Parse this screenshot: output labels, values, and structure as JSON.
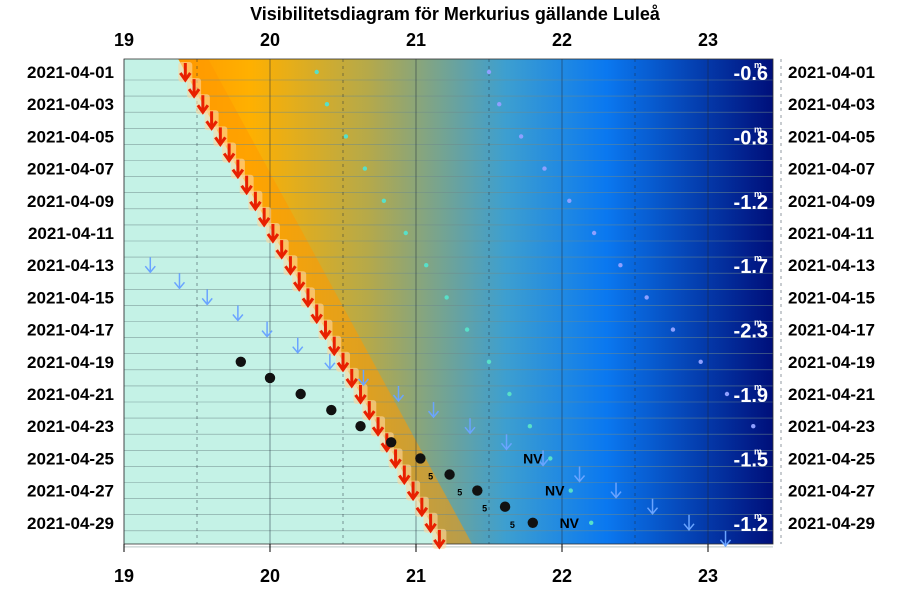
{
  "title": "Visibilitetsdiagram för Merkurius gällande Luleå",
  "chart_data": {
    "type": "scatter",
    "title": "Visibilitetsdiagram för Merkurius gällande Luleå",
    "x_axis": {
      "min": 19.0,
      "max": 23.5,
      "ticks": [
        19,
        20,
        21,
        22,
        23
      ],
      "tick_labels": [
        "19",
        "20",
        "21",
        "22",
        "23"
      ]
    },
    "y_axis": {
      "start_day": 1,
      "end_day": 30,
      "tick_labels": [
        "2021-04-01",
        "2021-04-03",
        "2021-04-05",
        "2021-04-07",
        "2021-04-09",
        "2021-04-11",
        "2021-04-13",
        "2021-04-15",
        "2021-04-17",
        "2021-04-19",
        "2021-04-21",
        "2021-04-23",
        "2021-04-25",
        "2021-04-27",
        "2021-04-29"
      ]
    },
    "colors": {
      "daylight": "#c4f2e6",
      "sunset_glow": "#ff9900",
      "twilight_mid": "#b5a94a",
      "dusk_blue": "#0a78f0",
      "night": "#000f7a",
      "sunset_marker": "#e82000",
      "moon_arrow": "#6aa4ff",
      "planet": "#111111"
    },
    "series": [
      {
        "name": "",
        "marker": "red-down-arrow",
        "points": [
          {
            "day": 1,
            "time": 19.42
          },
          {
            "day": 2,
            "time": 19.48
          },
          {
            "day": 3,
            "time": 19.54
          },
          {
            "day": 4,
            "time": 19.6
          },
          {
            "day": 5,
            "time": 19.66
          },
          {
            "day": 6,
            "time": 19.72
          },
          {
            "day": 7,
            "time": 19.78
          },
          {
            "day": 8,
            "time": 19.84
          },
          {
            "day": 9,
            "time": 19.9
          },
          {
            "day": 10,
            "time": 19.96
          },
          {
            "day": 11,
            "time": 20.02
          },
          {
            "day": 12,
            "time": 20.08
          },
          {
            "day": 13,
            "time": 20.14
          },
          {
            "day": 14,
            "time": 20.2
          },
          {
            "day": 15,
            "time": 20.26
          },
          {
            "day": 16,
            "time": 20.32
          },
          {
            "day": 17,
            "time": 20.38
          },
          {
            "day": 18,
            "time": 20.44
          },
          {
            "day": 19,
            "time": 20.5
          },
          {
            "day": 20,
            "time": 20.56
          },
          {
            "day": 21,
            "time": 20.62
          },
          {
            "day": 22,
            "time": 20.68
          },
          {
            "day": 23,
            "time": 20.74
          },
          {
            "day": 24,
            "time": 20.8
          },
          {
            "day": 25,
            "time": 20.86
          },
          {
            "day": 26,
            "time": 20.92
          },
          {
            "day": 27,
            "time": 20.98
          },
          {
            "day": 28,
            "time": 21.04
          },
          {
            "day": 29,
            "time": 21.1
          },
          {
            "day": 30,
            "time": 21.16
          }
        ]
      },
      {
        "name": "",
        "marker": "teal-dot",
        "points": [
          {
            "day": 1,
            "time": 20.32
          },
          {
            "day": 3,
            "time": 20.39
          },
          {
            "day": 5,
            "time": 20.52
          },
          {
            "day": 7,
            "time": 20.65
          },
          {
            "day": 9,
            "time": 20.78
          },
          {
            "day": 11,
            "time": 20.93
          },
          {
            "day": 13,
            "time": 21.07
          },
          {
            "day": 15,
            "time": 21.21
          },
          {
            "day": 17,
            "time": 21.35
          },
          {
            "day": 19,
            "time": 21.5
          },
          {
            "day": 21,
            "time": 21.64
          },
          {
            "day": 23,
            "time": 21.78
          },
          {
            "day": 25,
            "time": 21.92
          },
          {
            "day": 27,
            "time": 22.06
          },
          {
            "day": 29,
            "time": 22.2
          }
        ]
      },
      {
        "name": "",
        "marker": "violet-dot",
        "points": [
          {
            "day": 1,
            "time": 21.5
          },
          {
            "day": 3,
            "time": 21.57
          },
          {
            "day": 5,
            "time": 21.72
          },
          {
            "day": 7,
            "time": 21.88
          },
          {
            "day": 9,
            "time": 22.05
          },
          {
            "day": 11,
            "time": 22.22
          },
          {
            "day": 13,
            "time": 22.4
          },
          {
            "day": 15,
            "time": 22.58
          },
          {
            "day": 17,
            "time": 22.76
          },
          {
            "day": 19,
            "time": 22.95
          },
          {
            "day": 21,
            "time": 23.13
          },
          {
            "day": 23,
            "time": 23.31
          }
        ]
      },
      {
        "name": "",
        "marker": "blue-down-arrow",
        "points": [
          {
            "day": 13,
            "time": 19.18
          },
          {
            "day": 14,
            "time": 19.38
          },
          {
            "day": 15,
            "time": 19.57
          },
          {
            "day": 16,
            "time": 19.78
          },
          {
            "day": 17,
            "time": 19.98
          },
          {
            "day": 18,
            "time": 20.19
          },
          {
            "day": 19,
            "time": 20.41
          },
          {
            "day": 20,
            "time": 20.64
          },
          {
            "day": 21,
            "time": 20.88
          },
          {
            "day": 22,
            "time": 21.12
          },
          {
            "day": 23,
            "time": 21.37
          },
          {
            "day": 24,
            "time": 21.62
          },
          {
            "day": 25,
            "time": 21.87
          },
          {
            "day": 26,
            "time": 22.12
          },
          {
            "day": 27,
            "time": 22.37
          },
          {
            "day": 28,
            "time": 22.62
          },
          {
            "day": 29,
            "time": 22.87
          },
          {
            "day": 30,
            "time": 23.12
          }
        ]
      },
      {
        "name": "",
        "marker": "black-dot",
        "points": [
          {
            "day": 19,
            "time": 19.8
          },
          {
            "day": 20,
            "time": 20.0
          },
          {
            "day": 21,
            "time": 20.21
          },
          {
            "day": 22,
            "time": 20.42
          },
          {
            "day": 23,
            "time": 20.62
          },
          {
            "day": 24,
            "time": 20.83
          },
          {
            "day": 25,
            "time": 21.03
          },
          {
            "day": 26,
            "time": 21.23
          },
          {
            "day": 27,
            "time": 21.42
          },
          {
            "day": 28,
            "time": 21.61
          },
          {
            "day": 29,
            "time": 21.8
          }
        ]
      }
    ],
    "magnitudes": [
      {
        "day": 1,
        "text": "-0.6"
      },
      {
        "day": 5,
        "text": "-0.8"
      },
      {
        "day": 9,
        "text": "-1.2"
      },
      {
        "day": 13,
        "text": "-1.7"
      },
      {
        "day": 17,
        "text": "-2.3"
      },
      {
        "day": 21,
        "text": "-1.9"
      },
      {
        "day": 25,
        "text": "-1.5"
      },
      {
        "day": 29,
        "text": "-1.2"
      }
    ],
    "magnitude_unit": "m",
    "direction_labels": [
      {
        "day": 25,
        "time": 21.8,
        "text": "NV"
      },
      {
        "day": 27,
        "time": 21.95,
        "text": "NV"
      },
      {
        "day": 29,
        "time": 22.05,
        "text": "NV"
      }
    ],
    "phase_labels": [
      {
        "day": 26,
        "time": 21.1,
        "text": "5"
      },
      {
        "day": 27,
        "time": 21.3,
        "text": "5"
      },
      {
        "day": 28,
        "time": 21.47,
        "text": "5"
      },
      {
        "day": 29,
        "time": 21.66,
        "text": "5"
      }
    ]
  }
}
